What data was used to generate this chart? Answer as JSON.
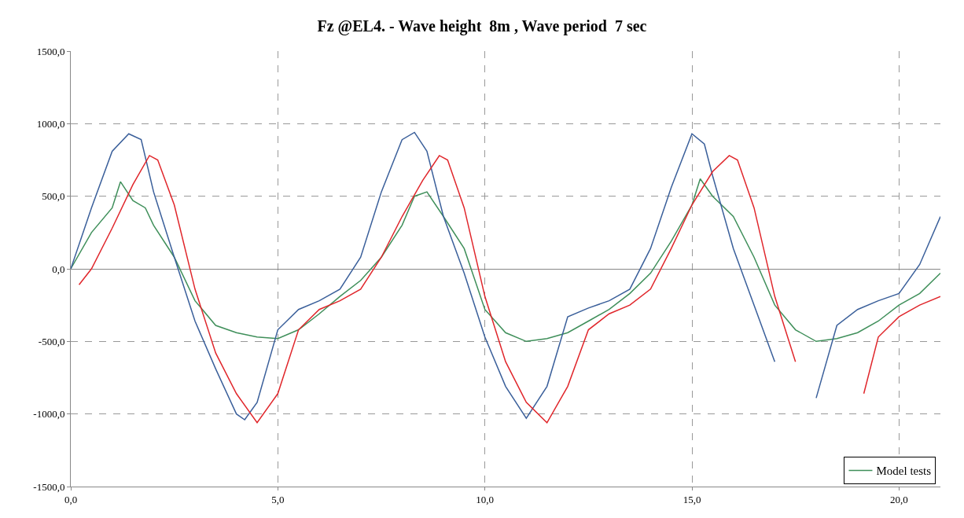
{
  "chart_data": {
    "type": "line",
    "title": "Fz @EL4. - Wave height  8m , Wave period  7 sec",
    "xlim": [
      0,
      21
    ],
    "ylim": [
      -1500,
      1500
    ],
    "xticks": [
      {
        "value": 0,
        "label": "0,0"
      },
      {
        "value": 5,
        "label": "5,0"
      },
      {
        "value": 10,
        "label": "10,0"
      },
      {
        "value": 15,
        "label": "15,0"
      },
      {
        "value": 20,
        "label": "20,0"
      }
    ],
    "yticks": [
      {
        "value": -1500,
        "label": "-1500,0"
      },
      {
        "value": -1000,
        "label": "-1000,0"
      },
      {
        "value": -500,
        "label": "-500,0"
      },
      {
        "value": 0,
        "label": "0,0"
      },
      {
        "value": 500,
        "label": "500,0"
      },
      {
        "value": 1000,
        "label": "1000,0"
      },
      {
        "value": 1500,
        "label": "1500,0"
      }
    ],
    "grid": true,
    "legend": "bottom right",
    "series": [
      {
        "name": "Model tests",
        "color": "#3f8f5a",
        "x": [
          0,
          0.5,
          1,
          1.2,
          1.5,
          1.8,
          2,
          2.5,
          3,
          3.5,
          4,
          4.5,
          5,
          5.5,
          6,
          6.5,
          7,
          7.5,
          8,
          8.3,
          8.6,
          9,
          9.5,
          10,
          10.5,
          11,
          11.5,
          12,
          12.5,
          13,
          13.5,
          14,
          14.5,
          15,
          15.2,
          15.5,
          16,
          16.5,
          17,
          17.5,
          18,
          18.5,
          19,
          19.5,
          20,
          20.5,
          21
        ],
        "values": [
          0,
          250,
          420,
          600,
          470,
          420,
          300,
          80,
          -220,
          -390,
          -440,
          -470,
          -480,
          -420,
          -310,
          -190,
          -80,
          80,
          300,
          500,
          530,
          360,
          140,
          -280,
          -440,
          -500,
          -480,
          -440,
          -360,
          -280,
          -170,
          -30,
          190,
          440,
          620,
          500,
          360,
          80,
          -250,
          -420,
          -500,
          -480,
          -440,
          -360,
          -250,
          -170,
          -30
        ]
      },
      {
        "color": "#3a5f9a",
        "x": [
          0,
          0.5,
          1,
          1.4,
          1.7,
          2,
          2.5,
          3,
          3.5,
          4,
          4.2,
          4.5,
          5,
          5.5,
          6,
          6.5,
          7,
          7.5,
          8,
          8.3,
          8.6,
          9,
          9.5,
          10,
          10.5,
          11,
          11.5,
          12,
          12.5,
          13,
          13.5,
          14,
          14.5,
          15,
          15.3,
          15.5,
          16,
          16.5,
          17,
          17.5,
          18,
          18.5,
          19,
          19.5,
          20,
          20.5,
          21
        ],
        "values": [
          0,
          420,
          810,
          930,
          890,
          530,
          80,
          -360,
          -690,
          -1000,
          -1040,
          -920,
          -420,
          -280,
          -220,
          -140,
          80,
          530,
          890,
          940,
          810,
          360,
          -30,
          -470,
          -810,
          -1030,
          -810,
          -330,
          -270,
          -220,
          -140,
          140,
          560,
          930,
          860,
          640,
          140,
          -250,
          -640,
          null,
          -890,
          -390,
          -280,
          -220,
          -170,
          30,
          360
        ]
      },
      {
        "color": "#e0262b",
        "x": [
          0.2,
          0.5,
          1,
          1.5,
          1.9,
          2.1,
          2.5,
          3,
          3.5,
          4,
          4.5,
          5,
          5.5,
          6,
          6.5,
          7,
          7.5,
          8,
          8.5,
          8.9,
          9.1,
          9.5,
          10,
          10.5,
          11,
          11.5,
          12,
          12.5,
          13,
          13.5,
          14,
          14.5,
          15,
          15.5,
          15.9,
          16.1,
          16.5,
          17,
          17.5,
          18,
          19.15,
          19.5,
          20,
          20.5,
          21
        ],
        "values": [
          -110,
          0,
          280,
          580,
          780,
          750,
          440,
          -140,
          -580,
          -860,
          -1060,
          -860,
          -420,
          -280,
          -220,
          -140,
          80,
          360,
          610,
          780,
          750,
          420,
          -190,
          -640,
          -920,
          -1060,
          -810,
          -420,
          -310,
          -250,
          -140,
          140,
          440,
          670,
          780,
          750,
          420,
          -190,
          -640,
          null,
          -860,
          -470,
          -330,
          -250,
          -190
        ]
      }
    ]
  }
}
